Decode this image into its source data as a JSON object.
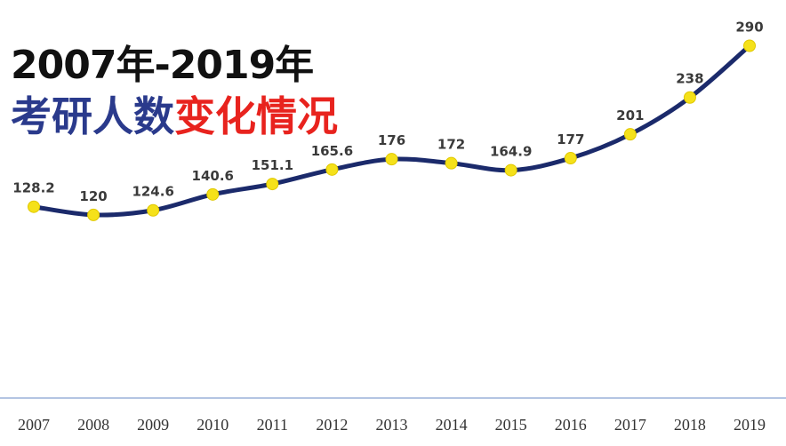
{
  "title": {
    "line1": "2007年-2019年",
    "line2_part1": "考研人数",
    "line2_part2": "变化情况"
  },
  "colors": {
    "line": "#1b2a6b",
    "marker": "#f5e11a",
    "title_dark_blue": "#2a3a8c",
    "title_red": "#e8231e",
    "axis": "#9bb2d8"
  },
  "chart_data": {
    "type": "line",
    "categories": [
      "2007",
      "2008",
      "2009",
      "2010",
      "2011",
      "2012",
      "2013",
      "2014",
      "2015",
      "2016",
      "2017",
      "2018",
      "2019"
    ],
    "values": [
      128.2,
      120,
      124.6,
      140.6,
      151.1,
      165.6,
      176,
      172,
      164.9,
      177,
      201,
      238,
      290
    ],
    "value_labels": [
      "128.2",
      "120",
      "124.6",
      "140.6",
      "151.1",
      "165.6",
      "176",
      "172",
      "164.9",
      "177",
      "201",
      "238",
      "290"
    ],
    "xlabel": "",
    "ylabel": "",
    "grid": false,
    "smooth": true,
    "ylim": [
      0,
      300
    ]
  }
}
